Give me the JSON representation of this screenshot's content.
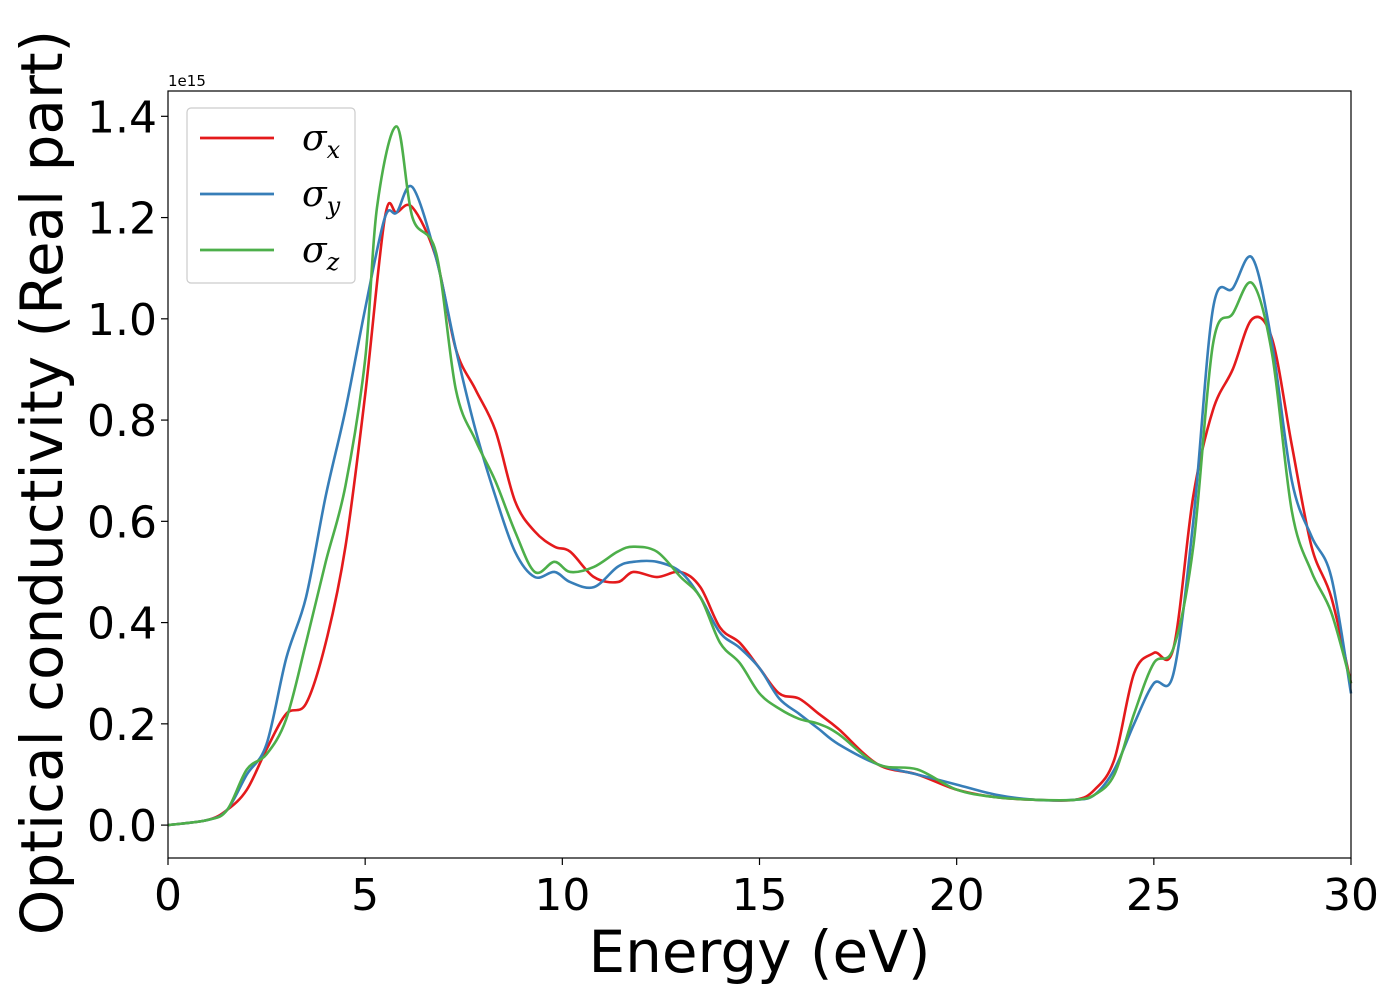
{
  "chart_data": {
    "type": "line",
    "xlabel": "Energy (eV)",
    "ylabel": "Optical conductivity (Real part)",
    "y_offset_text": "1e15",
    "y_scale": 1000000000000000.0,
    "xlim": [
      0,
      30
    ],
    "ylim": [
      -0.065,
      1.45
    ],
    "xticks": [
      0,
      5,
      10,
      15,
      20,
      25,
      30
    ],
    "xtick_labels": [
      "0",
      "5",
      "10",
      "15",
      "20",
      "25",
      "30"
    ],
    "yticks": [
      0.0,
      0.2,
      0.4,
      0.6,
      0.8,
      1.0,
      1.2,
      1.4
    ],
    "ytick_labels": [
      "0.0",
      "0.2",
      "0.4",
      "0.6",
      "0.8",
      "1.0",
      "1.2",
      "1.4"
    ],
    "grid": false,
    "legend_position": "top-left",
    "series": [
      {
        "name": "σx",
        "symbol": "σ",
        "subscript": "x",
        "color": "#e41a1c",
        "x": [
          0,
          1,
          1.5,
          2,
          2.5,
          3,
          3.5,
          4,
          4.5,
          5,
          5.5,
          5.8,
          6.2,
          6.8,
          7.3,
          7.8,
          8.3,
          8.8,
          9.3,
          9.8,
          10.2,
          10.8,
          11.4,
          11.8,
          12.4,
          13,
          13.5,
          14,
          14.5,
          15,
          15.5,
          16,
          16.5,
          17,
          18,
          19,
          20,
          21,
          22,
          23,
          23.5,
          24,
          24.5,
          25,
          25.5,
          26,
          26.5,
          27,
          27.5,
          28,
          28.5,
          29,
          29.5,
          30
        ],
        "y": [
          0.0,
          0.01,
          0.03,
          0.07,
          0.15,
          0.22,
          0.24,
          0.36,
          0.55,
          0.85,
          1.2,
          1.21,
          1.22,
          1.12,
          0.94,
          0.86,
          0.78,
          0.64,
          0.58,
          0.55,
          0.54,
          0.49,
          0.48,
          0.5,
          0.49,
          0.5,
          0.47,
          0.39,
          0.36,
          0.31,
          0.26,
          0.25,
          0.22,
          0.19,
          0.12,
          0.1,
          0.07,
          0.055,
          0.05,
          0.05,
          0.07,
          0.13,
          0.3,
          0.34,
          0.35,
          0.65,
          0.82,
          0.9,
          1.0,
          0.96,
          0.75,
          0.55,
          0.45,
          0.28
        ]
      },
      {
        "name": "σy",
        "symbol": "σ",
        "subscript": "y",
        "color": "#377eb8",
        "x": [
          0,
          1,
          1.5,
          2,
          2.5,
          3,
          3.5,
          4,
          4.5,
          5,
          5.5,
          5.8,
          6.2,
          6.8,
          7.3,
          7.8,
          8.3,
          8.8,
          9.3,
          9.8,
          10.2,
          10.8,
          11.4,
          11.8,
          12.4,
          13,
          13.5,
          14,
          14.5,
          15,
          15.5,
          16,
          16.5,
          17,
          18,
          19,
          20,
          21,
          22,
          23,
          23.5,
          24,
          24.5,
          25,
          25.5,
          26,
          26.5,
          27,
          27.5,
          28,
          28.5,
          29,
          29.5,
          30
        ],
        "y": [
          0.0,
          0.01,
          0.03,
          0.1,
          0.16,
          0.33,
          0.45,
          0.65,
          0.82,
          1.02,
          1.2,
          1.21,
          1.26,
          1.12,
          0.94,
          0.78,
          0.65,
          0.54,
          0.49,
          0.5,
          0.48,
          0.47,
          0.51,
          0.52,
          0.52,
          0.5,
          0.45,
          0.38,
          0.35,
          0.31,
          0.25,
          0.22,
          0.19,
          0.16,
          0.12,
          0.1,
          0.08,
          0.06,
          0.05,
          0.05,
          0.06,
          0.11,
          0.2,
          0.28,
          0.3,
          0.6,
          1.02,
          1.06,
          1.12,
          0.95,
          0.68,
          0.57,
          0.49,
          0.26
        ]
      },
      {
        "name": "σz",
        "symbol": "σ",
        "subscript": "z",
        "color": "#4daf4a",
        "x": [
          0,
          1,
          1.5,
          2,
          2.5,
          3,
          3.5,
          4,
          4.5,
          5,
          5.3,
          5.8,
          6.2,
          6.8,
          7.3,
          7.8,
          8.3,
          8.8,
          9.3,
          9.8,
          10.2,
          10.8,
          11.4,
          11.8,
          12.4,
          13,
          13.5,
          14,
          14.5,
          15,
          15.5,
          16,
          16.5,
          17,
          18,
          19,
          20,
          21,
          22,
          23,
          23.5,
          24,
          24.5,
          25,
          25.5,
          26,
          26.5,
          27,
          27.5,
          28,
          28.5,
          29,
          29.5,
          30
        ],
        "y": [
          0.0,
          0.01,
          0.03,
          0.11,
          0.14,
          0.21,
          0.36,
          0.52,
          0.67,
          0.92,
          1.22,
          1.38,
          1.2,
          1.13,
          0.86,
          0.76,
          0.68,
          0.58,
          0.5,
          0.52,
          0.5,
          0.51,
          0.54,
          0.55,
          0.54,
          0.49,
          0.45,
          0.36,
          0.32,
          0.26,
          0.23,
          0.21,
          0.2,
          0.18,
          0.12,
          0.11,
          0.07,
          0.055,
          0.05,
          0.05,
          0.06,
          0.1,
          0.22,
          0.32,
          0.35,
          0.55,
          0.95,
          1.01,
          1.07,
          0.93,
          0.62,
          0.5,
          0.42,
          0.28
        ]
      }
    ]
  }
}
